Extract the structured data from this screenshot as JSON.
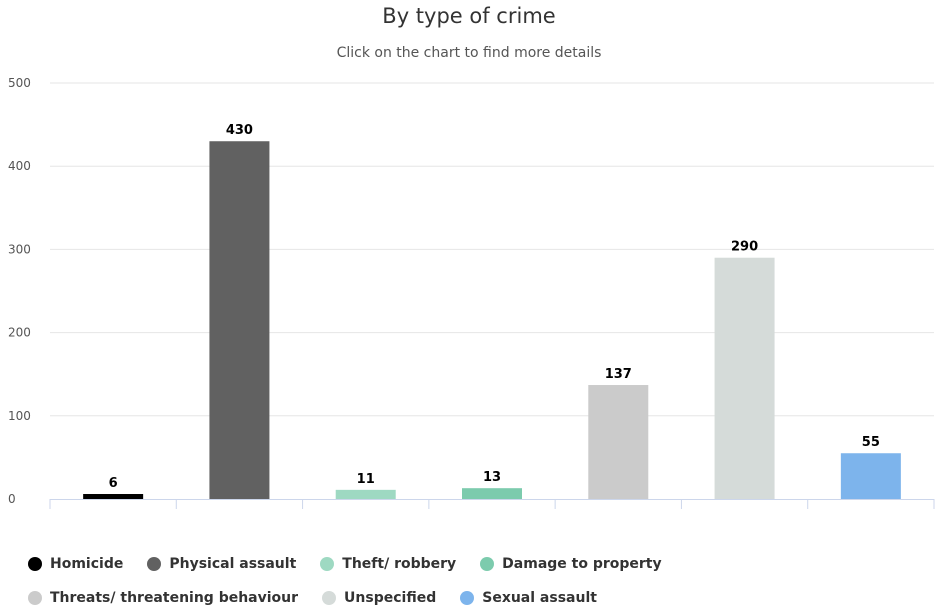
{
  "chart_data": {
    "type": "bar",
    "title": "By type of crime",
    "subtitle": "Click on the chart to find more details",
    "categories": [
      "Homicide",
      "Physical assault",
      "Theft/ robbery",
      "Damage to property",
      "Threats/ threatening behaviour",
      "Unspecified",
      "Sexual assault"
    ],
    "values": [
      6,
      430,
      11,
      13,
      137,
      290,
      55
    ],
    "colors": [
      "#000000",
      "#616161",
      "#9ed9c2",
      "#7ccbad",
      "#cbcbcb",
      "#d5dbd9",
      "#7db4ec"
    ],
    "ylim": [
      0,
      500
    ],
    "yticks": [
      0,
      100,
      200,
      300,
      400,
      500
    ],
    "xlabel": "",
    "ylabel": "",
    "grid": true,
    "legend_position": "bottom-left",
    "data_labels": true
  }
}
